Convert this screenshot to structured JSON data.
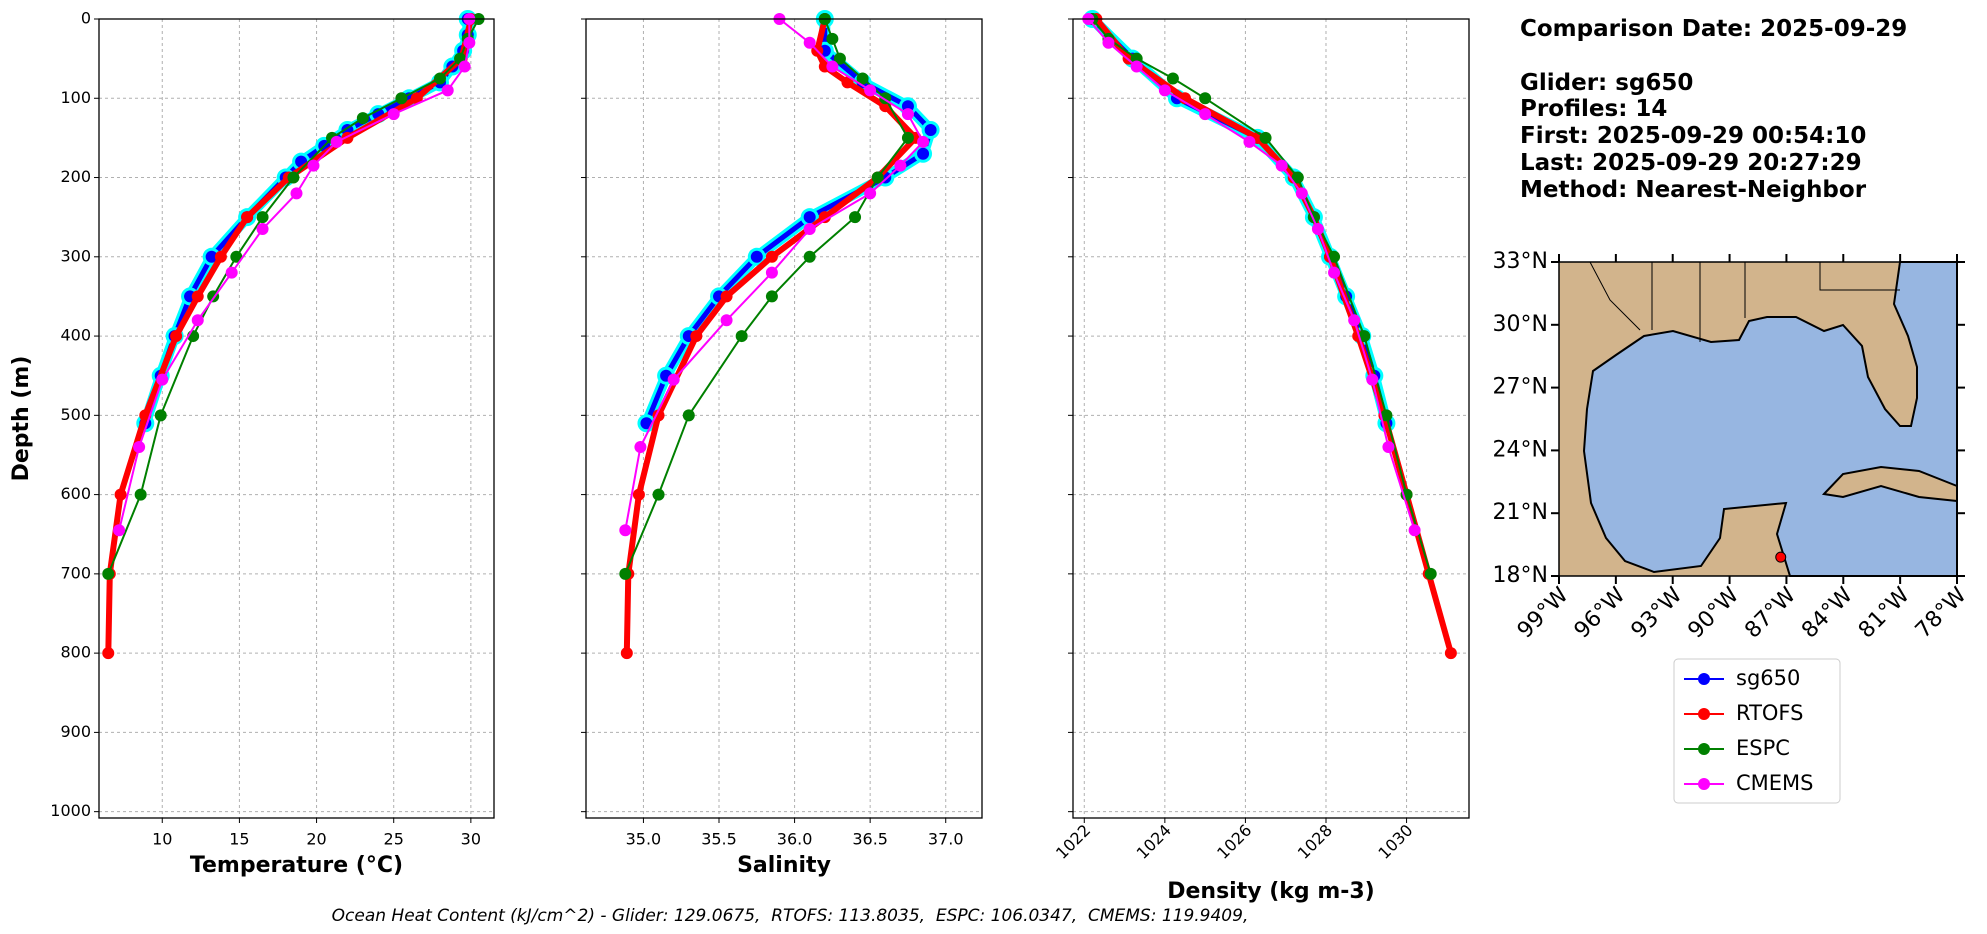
{
  "chart_data": [
    {
      "type": "line",
      "xlabel": "Temperature (°C)",
      "ylabel": "Depth (m)",
      "show_yticklabels": true,
      "xlim": [
        5.9,
        31.5
      ],
      "ylim": [
        0,
        1008
      ],
      "y_inverted": true,
      "grid": true,
      "xticks": [
        10,
        15,
        20,
        25,
        30
      ],
      "yticks": [
        0,
        100,
        200,
        300,
        400,
        500,
        600,
        700,
        800,
        900,
        1000
      ],
      "series": [
        {
          "name": "sg650",
          "color": "#0000ff",
          "edge_color": "#00ffff",
          "linewidth": 5,
          "depth": [
            0,
            20,
            40,
            60,
            80,
            100,
            120,
            140,
            160,
            180,
            200,
            250,
            300,
            350,
            400,
            450,
            510
          ],
          "values": [
            29.8,
            29.8,
            29.5,
            28.8,
            28,
            26,
            24,
            22,
            20.5,
            19,
            18,
            15.5,
            13.2,
            11.8,
            10.8,
            9.9,
            8.9
          ]
        },
        {
          "name": "RTOFS",
          "color": "#ff0000",
          "linewidth": 6,
          "depth": [
            0,
            50,
            100,
            150,
            200,
            250,
            300,
            350,
            400,
            500,
            600,
            700,
            800
          ],
          "values": [
            30,
            29.4,
            26.5,
            22,
            18.2,
            15.5,
            13.8,
            12.3,
            10.9,
            8.9,
            7.3,
            6.6,
            6.5
          ]
        },
        {
          "name": "ESPC",
          "color": "#008000",
          "linewidth": 2,
          "depth": [
            0,
            25,
            50,
            75,
            100,
            125,
            150,
            200,
            250,
            300,
            350,
            400,
            500,
            600,
            700
          ],
          "values": [
            30.5,
            29.8,
            29.3,
            28,
            25.5,
            23,
            21,
            18.5,
            16.5,
            14.8,
            13.3,
            12,
            9.9,
            8.6,
            6.5
          ]
        },
        {
          "name": "CMEMS",
          "color": "#ff00ff",
          "linewidth": 2,
          "depth": [
            0,
            30,
            60,
            90,
            120,
            155,
            185,
            220,
            265,
            320,
            380,
            455,
            540,
            645
          ],
          "values": [
            29.9,
            29.9,
            29.6,
            28.5,
            25,
            21.3,
            19.8,
            18.7,
            16.5,
            14.5,
            12.3,
            10,
            8.5,
            7.2
          ]
        }
      ]
    },
    {
      "type": "line",
      "xlabel": "Salinity",
      "show_yticklabels": false,
      "xlim": [
        34.62,
        37.24
      ],
      "ylim": [
        0,
        1008
      ],
      "y_inverted": true,
      "grid": true,
      "xticks": [
        {
          "value": 35,
          "label": "35.0"
        },
        35.5,
        {
          "value": 36,
          "label": "36.0"
        },
        36.5,
        {
          "value": 37,
          "label": "37.0"
        }
      ],
      "yticks": [
        0,
        100,
        200,
        300,
        400,
        500,
        600,
        700,
        800,
        900,
        1000
      ],
      "series": [
        {
          "name": "sg650",
          "color": "#0000ff",
          "edge_color": "#00ffff",
          "linewidth": 5,
          "depth": [
            0,
            40,
            80,
            110,
            140,
            170,
            200,
            250,
            300,
            350,
            400,
            450,
            510
          ],
          "values": [
            36.2,
            36.2,
            36.45,
            36.75,
            36.9,
            36.85,
            36.6,
            36.1,
            35.75,
            35.5,
            35.3,
            35.15,
            35.02
          ]
        },
        {
          "name": "RTOFS",
          "color": "#ff0000",
          "linewidth": 6,
          "depth": [
            0,
            40,
            60,
            80,
            110,
            150,
            200,
            250,
            300,
            350,
            400,
            500,
            600,
            700,
            800
          ],
          "values": [
            36.2,
            36.15,
            36.2,
            36.35,
            36.6,
            36.8,
            36.55,
            36.2,
            35.85,
            35.55,
            35.35,
            35.1,
            34.97,
            34.9,
            34.89
          ]
        },
        {
          "name": "ESPC",
          "color": "#008000",
          "linewidth": 2,
          "depth": [
            0,
            25,
            50,
            75,
            100,
            150,
            200,
            250,
            300,
            350,
            400,
            500,
            600,
            700
          ],
          "values": [
            36.2,
            36.25,
            36.3,
            36.45,
            36.6,
            36.75,
            36.55,
            36.4,
            36.1,
            35.85,
            35.65,
            35.3,
            35.1,
            34.88
          ]
        },
        {
          "name": "CMEMS",
          "color": "#ff00ff",
          "linewidth": 2,
          "depth": [
            0,
            30,
            60,
            90,
            120,
            155,
            185,
            220,
            265,
            320,
            380,
            455,
            540,
            645
          ],
          "values": [
            35.9,
            36.1,
            36.25,
            36.5,
            36.75,
            36.85,
            36.7,
            36.5,
            36.1,
            35.85,
            35.55,
            35.2,
            34.98,
            34.88
          ]
        }
      ]
    },
    {
      "type": "line",
      "xlabel": "Density (kg m-3)",
      "show_yticklabels": false,
      "xtick_rotation": 45,
      "xlim": [
        1021.72,
        1031.55
      ],
      "ylim": [
        0,
        1008
      ],
      "y_inverted": true,
      "grid": true,
      "xticks": [
        1022,
        1024,
        1026,
        1028,
        1030
      ],
      "yticks": [
        0,
        100,
        200,
        300,
        400,
        500,
        600,
        700,
        800,
        900,
        1000
      ],
      "series": [
        {
          "name": "sg650",
          "color": "#0000ff",
          "edge_color": "#00ffff",
          "linewidth": 5,
          "depth": [
            0,
            50,
            100,
            150,
            200,
            250,
            300,
            350,
            400,
            450,
            510
          ],
          "values": [
            1022.2,
            1023.2,
            1024.3,
            1026.3,
            1027.2,
            1027.7,
            1028.1,
            1028.5,
            1028.9,
            1029.2,
            1029.5
          ]
        },
        {
          "name": "RTOFS",
          "color": "#ff0000",
          "linewidth": 6,
          "depth": [
            0,
            50,
            100,
            150,
            200,
            250,
            300,
            400,
            500,
            600,
            700,
            800
          ],
          "values": [
            1022.3,
            1023.1,
            1024.5,
            1026.3,
            1027.2,
            1027.7,
            1028.1,
            1028.8,
            1029.45,
            1030,
            1030.55,
            1031.1
          ]
        },
        {
          "name": "ESPC",
          "color": "#008000",
          "linewidth": 2,
          "depth": [
            0,
            25,
            50,
            75,
            100,
            150,
            200,
            250,
            300,
            400,
            500,
            600,
            700
          ],
          "values": [
            1022.2,
            1022.6,
            1023.3,
            1024.2,
            1025,
            1026.5,
            1027.3,
            1027.7,
            1028.2,
            1028.95,
            1029.5,
            1030,
            1030.6
          ]
        },
        {
          "name": "CMEMS",
          "color": "#ff00ff",
          "linewidth": 2,
          "depth": [
            0,
            30,
            60,
            90,
            120,
            155,
            185,
            220,
            265,
            320,
            380,
            455,
            540,
            645
          ],
          "values": [
            1022.1,
            1022.6,
            1023.3,
            1024,
            1025,
            1026.1,
            1026.9,
            1027.4,
            1027.8,
            1028.2,
            1028.7,
            1029.15,
            1029.55,
            1030.2
          ]
        }
      ]
    },
    {
      "type": "map",
      "xlim": [
        -99,
        -78
      ],
      "ylim": [
        18,
        33
      ],
      "xticks": [
        {
          "value": -99,
          "label": "99°W"
        },
        {
          "value": -96,
          "label": "96°W"
        },
        {
          "value": -93,
          "label": "93°W"
        },
        {
          "value": -90,
          "label": "90°W"
        },
        {
          "value": -87,
          "label": "87°W"
        },
        {
          "value": -84,
          "label": "84°W"
        },
        {
          "value": -81,
          "label": "81°W"
        },
        {
          "value": -78,
          "label": "78°W"
        }
      ],
      "yticks": [
        {
          "value": 18,
          "label": "18°N"
        },
        {
          "value": 21,
          "label": "21°N"
        },
        {
          "value": 24,
          "label": "24°N"
        },
        {
          "value": 27,
          "label": "27°N"
        },
        {
          "value": 30,
          "label": "30°N"
        },
        {
          "value": 33,
          "label": "33°N"
        }
      ],
      "series": [
        {
          "color": "#ff0000",
          "x": [
            -87.3
          ],
          "values": [
            18.9
          ]
        }
      ]
    }
  ],
  "info": [
    "Comparison Date: 2025-09-29",
    "Glider: sg650",
    "Profiles: 14",
    "First: 2025-09-29 00:54:10",
    "Last: 2025-09-29 20:27:29",
    "Method: Nearest-Neighbor"
  ],
  "footer": "Ocean Heat Content (kJ/cm^2) - Glider: 129.0675,  RTOFS: 113.8035,  ESPC: 106.0347,  CMEMS: 119.9409,"
}
